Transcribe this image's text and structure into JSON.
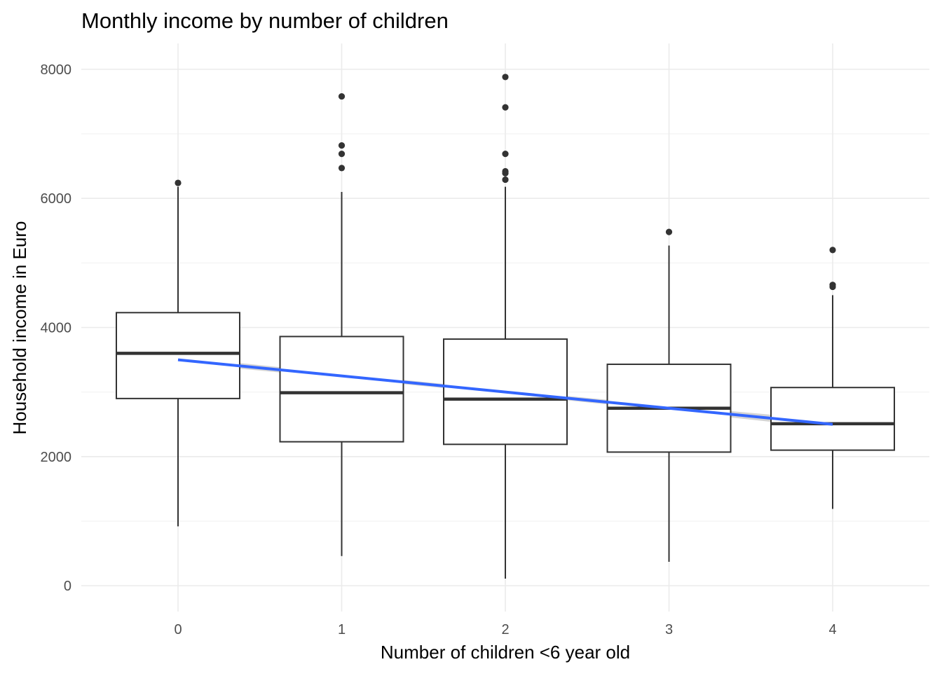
{
  "chart_data": {
    "type": "boxplot",
    "title": "Monthly income by number of children",
    "xlabel": "Number of children <6 year old",
    "ylabel": "Household income in Euro",
    "categories": [
      "0",
      "1",
      "2",
      "3",
      "4"
    ],
    "ylim": [
      -400,
      8400
    ],
    "y_ticks": [
      0,
      2000,
      4000,
      6000,
      8000
    ],
    "y_tick_labels": [
      "0",
      "2000",
      "4000",
      "6000",
      "8000"
    ],
    "grid": true,
    "legend": "none",
    "boxes": [
      {
        "category": "0",
        "whisker_low": 920,
        "q1": 2900,
        "median": 3600,
        "q3": 4230,
        "whisker_high": 6180,
        "outliers": [
          6240
        ]
      },
      {
        "category": "1",
        "whisker_low": 460,
        "q1": 2230,
        "median": 2990,
        "q3": 3860,
        "whisker_high": 6100,
        "outliers": [
          7580,
          6820,
          6690,
          6470
        ]
      },
      {
        "category": "2",
        "whisker_low": 110,
        "q1": 2190,
        "median": 2890,
        "q3": 3820,
        "whisker_high": 6180,
        "outliers": [
          7880,
          7410,
          6690,
          6420,
          6390,
          6290
        ]
      },
      {
        "category": "3",
        "whisker_low": 370,
        "q1": 2070,
        "median": 2750,
        "q3": 3430,
        "whisker_high": 5270,
        "outliers": [
          5480
        ]
      },
      {
        "category": "4",
        "whisker_low": 1190,
        "q1": 2100,
        "median": 2510,
        "q3": 3070,
        "whisker_high": 4500,
        "outliers": [
          5200,
          4660,
          4630
        ]
      }
    ],
    "trend": {
      "type": "linear",
      "color": "#3366FF",
      "ribbon_color": "#cccccc",
      "x": [
        0,
        1,
        2,
        3,
        4
      ],
      "y": [
        3500,
        3250,
        3000,
        2750,
        2500
      ],
      "ci_half_width": [
        50,
        35,
        30,
        40,
        65
      ]
    },
    "colors": {
      "box_line": "#333333",
      "outlier": "#333333",
      "grid_major": "#ebebeb",
      "grid_minor": "#f3f3f3",
      "tick_label": "#4d4d4d",
      "text": "#000000"
    }
  }
}
